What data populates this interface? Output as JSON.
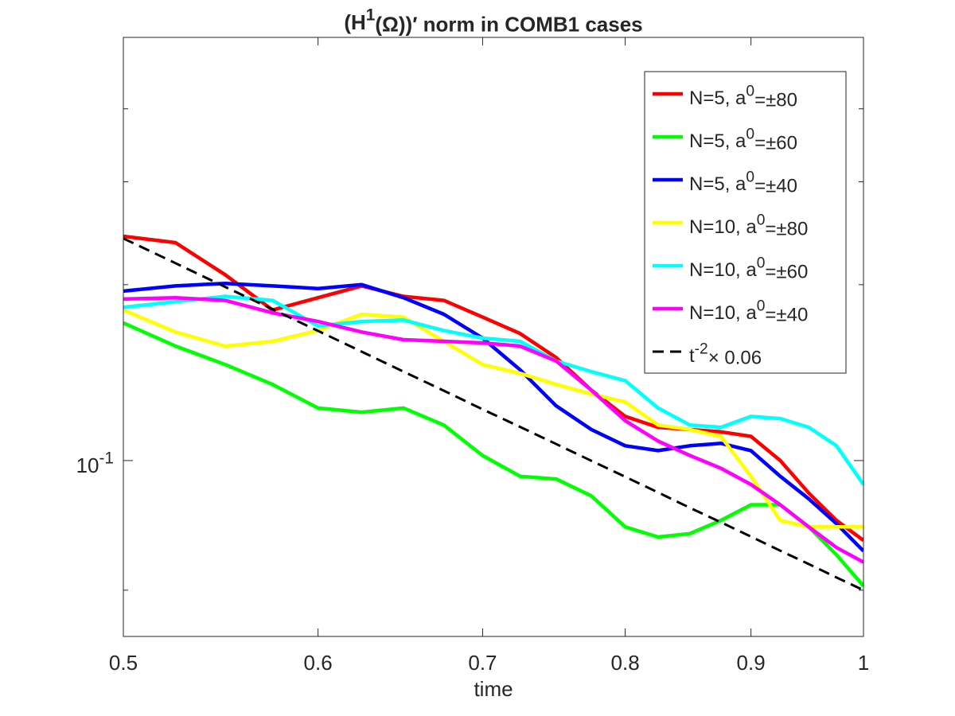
{
  "chart_data": {
    "type": "line",
    "title": "(H^1(Ω))′ norm in COMB1 cases",
    "xlabel": "time",
    "x": [
      0.5,
      0.525,
      0.55,
      0.575,
      0.6,
      0.625,
      0.65,
      0.675,
      0.7,
      0.725,
      0.75,
      0.775,
      0.8,
      0.825,
      0.85,
      0.875,
      0.9,
      0.925,
      0.95,
      0.975,
      1
    ],
    "xlim": [
      0.5,
      1
    ],
    "xticks": [
      0.5,
      0.6,
      0.7,
      0.8,
      0.9,
      1
    ],
    "xscale": "log",
    "ylim": [
      0.05,
      0.53
    ],
    "yscale": "log",
    "yticks": [
      {
        "value": 0.1,
        "label": "10^-1"
      }
    ],
    "minor_yticks": [
      0.06,
      0.2,
      0.3,
      0.4
    ],
    "legend": "northeast",
    "grid": false,
    "series": [
      {
        "name": "N=5, a^0=±80",
        "color": "#ff0000",
        "values": [
          0.242,
          0.236,
          0.208,
          0.181,
          0.19,
          0.199,
          0.191,
          0.188,
          0.176,
          0.165,
          0.15,
          0.132,
          0.119,
          0.114,
          0.113,
          0.112,
          0.11,
          0.1,
          0.088,
          0.079,
          0.073
        ]
      },
      {
        "name": "N=5, a^0=±60",
        "color": "#00ff00",
        "values": [
          0.172,
          0.157,
          0.146,
          0.135,
          0.123,
          0.121,
          0.123,
          0.115,
          0.102,
          0.094,
          0.093,
          0.087,
          0.077,
          0.074,
          0.075,
          0.079,
          0.084,
          0.084,
          0.077,
          0.069,
          0.061
        ]
      },
      {
        "name": "N=5, a^0=±40",
        "color": "#0000ff",
        "values": [
          0.195,
          0.199,
          0.201,
          0.199,
          0.197,
          0.2,
          0.19,
          0.178,
          0.162,
          0.143,
          0.124,
          0.113,
          0.106,
          0.104,
          0.106,
          0.107,
          0.104,
          0.094,
          0.086,
          0.078,
          0.07
        ]
      },
      {
        "name": "N=10, a^0=±80",
        "color": "#ffff00",
        "values": [
          0.181,
          0.166,
          0.157,
          0.16,
          0.167,
          0.178,
          0.176,
          0.16,
          0.146,
          0.141,
          0.135,
          0.13,
          0.126,
          0.115,
          0.113,
          0.11,
          0.094,
          0.079,
          0.077,
          0.077,
          0.077
        ]
      },
      {
        "name": "N=10, a^0=±60",
        "color": "#00ffff",
        "values": [
          0.183,
          0.187,
          0.191,
          0.188,
          0.17,
          0.173,
          0.174,
          0.167,
          0.162,
          0.16,
          0.148,
          0.142,
          0.137,
          0.123,
          0.115,
          0.114,
          0.119,
          0.118,
          0.114,
          0.106,
          0.091
        ]
      },
      {
        "name": "N=10, a^0=±40",
        "color": "#ff00ff",
        "values": [
          0.189,
          0.19,
          0.188,
          0.179,
          0.173,
          0.166,
          0.161,
          0.16,
          0.159,
          0.157,
          0.148,
          0.132,
          0.117,
          0.108,
          0.102,
          0.097,
          0.091,
          0.084,
          0.077,
          0.071,
          0.067
        ]
      },
      {
        "name": "t^-2× 0.06",
        "color": "#000000",
        "dashed": true,
        "values": [
          0.24,
          0.2177,
          0.1983,
          0.1815,
          0.1667,
          0.1536,
          0.142,
          0.1317,
          0.1224,
          0.1142,
          0.1067,
          0.0999,
          0.0938,
          0.0882,
          0.083,
          0.0784,
          0.0741,
          0.0701,
          0.0665,
          0.0631,
          0.06
        ]
      }
    ]
  }
}
